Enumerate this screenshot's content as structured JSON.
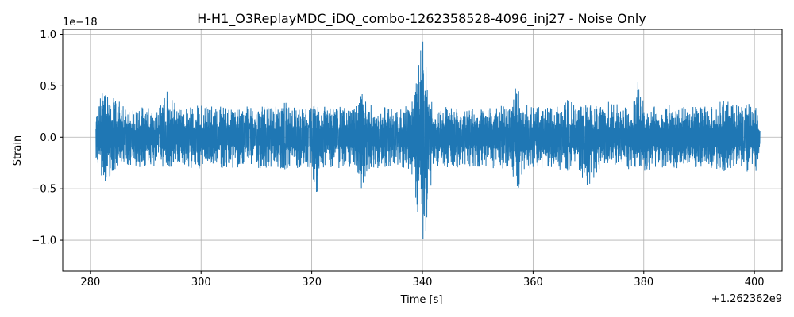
{
  "chart_data": {
    "type": "line",
    "title": "H-H1_O3ReplayMDC_iDQ_combo-1262358528-4096_inj27 - Noise Only",
    "xlabel": "Time [s]",
    "ylabel": "Strain",
    "x_offset_label": "+1.262362e9",
    "y_scale_label": "1e−18",
    "xlim": [
      275,
      405
    ],
    "ylim": [
      -1.3,
      1.05
    ],
    "x_ticks": [
      280,
      300,
      320,
      340,
      360,
      380,
      400
    ],
    "x_tick_labels": [
      "280",
      "300",
      "320",
      "340",
      "360",
      "380",
      "400"
    ],
    "y_ticks": [
      -1.0,
      -0.5,
      0.0,
      0.5,
      1.0
    ],
    "y_tick_labels": [
      "−1.0",
      "−0.5",
      "0.0",
      "0.5",
      "1.0"
    ],
    "grid": true,
    "line_color": "#1f77b4",
    "series": [
      {
        "x_start": 281,
        "x_end": 401,
        "envelope_x": [
          281,
          282,
          283,
          284,
          285,
          286,
          288,
          290,
          292,
          294,
          296,
          298,
          300,
          302,
          304,
          306,
          308,
          310,
          312,
          314,
          316,
          318,
          320,
          321,
          322,
          324,
          326,
          328,
          329,
          330,
          332,
          334,
          336,
          338,
          339,
          340,
          340.5,
          341,
          342,
          344,
          346,
          348,
          350,
          352,
          354,
          356,
          357,
          358,
          360,
          362,
          364,
          366,
          368,
          370,
          372,
          374,
          376,
          378,
          379,
          380,
          382,
          384,
          386,
          388,
          390,
          392,
          394,
          396,
          398,
          400,
          401
        ],
        "envelope_upper": [
          0.22,
          0.45,
          0.5,
          0.38,
          0.4,
          0.3,
          0.28,
          0.3,
          0.28,
          0.48,
          0.28,
          0.3,
          0.32,
          0.34,
          0.3,
          0.28,
          0.3,
          0.3,
          0.3,
          0.32,
          0.36,
          0.28,
          0.3,
          0.34,
          0.3,
          0.3,
          0.3,
          0.3,
          0.46,
          0.32,
          0.3,
          0.3,
          0.3,
          0.34,
          0.62,
          0.95,
          0.85,
          0.5,
          0.28,
          0.3,
          0.3,
          0.28,
          0.3,
          0.28,
          0.32,
          0.3,
          0.52,
          0.34,
          0.3,
          0.3,
          0.28,
          0.4,
          0.3,
          0.32,
          0.3,
          0.36,
          0.3,
          0.3,
          0.58,
          0.34,
          0.3,
          0.32,
          0.3,
          0.3,
          0.3,
          0.3,
          0.42,
          0.32,
          0.3,
          0.35,
          0.2
        ],
        "envelope_lower": [
          -0.2,
          -0.45,
          -0.42,
          -0.35,
          -0.3,
          -0.28,
          -0.28,
          -0.3,
          -0.3,
          -0.3,
          -0.28,
          -0.32,
          -0.3,
          -0.28,
          -0.3,
          -0.32,
          -0.3,
          -0.3,
          -0.3,
          -0.3,
          -0.32,
          -0.3,
          -0.35,
          -0.58,
          -0.3,
          -0.3,
          -0.3,
          -0.3,
          -0.52,
          -0.32,
          -0.3,
          -0.3,
          -0.28,
          -0.34,
          -0.75,
          -1.0,
          -1.18,
          -0.7,
          -0.3,
          -0.3,
          -0.3,
          -0.28,
          -0.3,
          -0.3,
          -0.3,
          -0.32,
          -0.58,
          -0.36,
          -0.3,
          -0.3,
          -0.3,
          -0.34,
          -0.3,
          -0.5,
          -0.32,
          -0.3,
          -0.3,
          -0.32,
          -0.4,
          -0.34,
          -0.3,
          -0.3,
          -0.32,
          -0.3,
          -0.3,
          -0.3,
          -0.34,
          -0.3,
          -0.32,
          -0.38,
          -0.2
        ]
      }
    ]
  }
}
